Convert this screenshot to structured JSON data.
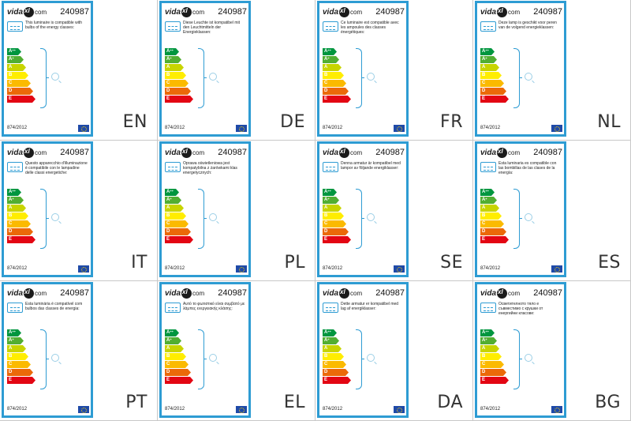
{
  "brand": {
    "logo_left": "vida",
    "logo_right": "com"
  },
  "sku": "240987",
  "regulation": "874/2012",
  "classes": [
    {
      "label": "A",
      "sup": "++",
      "color": "#00963f"
    },
    {
      "label": "A",
      "sup": "+",
      "color": "#52ae32"
    },
    {
      "label": "A",
      "sup": "",
      "color": "#c8d400"
    },
    {
      "label": "B",
      "sup": "",
      "color": "#ffed00"
    },
    {
      "label": "C",
      "sup": "",
      "color": "#fbba00"
    },
    {
      "label": "D",
      "sup": "",
      "color": "#eb6909"
    },
    {
      "label": "E",
      "sup": "",
      "color": "#e30613"
    }
  ],
  "colors": {
    "frame": "#2e9cd3",
    "eu_flag": "#1f4aa8"
  },
  "labels": [
    {
      "lang": "EN",
      "text": "This luminaire is compatible with bulbs of the energy classes:"
    },
    {
      "lang": "DE",
      "text": "Diese Leuchte ist kompatibel mit den Leuchtmitteln der Energieklassen:"
    },
    {
      "lang": "FR",
      "text": "Ce luminaire est compatible avec les ampoules des classes énergétiques:"
    },
    {
      "lang": "NL",
      "text": "Deze lamp is geschikt voor peren van de volgend energieklassen:"
    },
    {
      "lang": "IT",
      "text": "Questo apparecchio d'illuminazione è compatibile con le lampadine delle classi energetiche:"
    },
    {
      "lang": "PL",
      "text": "Oprawa oświetleniowa jest kompatybilna z żarówkami klas energetycznych:"
    },
    {
      "lang": "SE",
      "text": "Denna armatur är kompatibel med lampor av följande energiklasser:"
    },
    {
      "lang": "ES",
      "text": "Esta luminaria es compatible con las bombillas de las clases de la energía:"
    },
    {
      "lang": "PT",
      "text": "Esta luminária é compatível com bulbos das classes de energia:"
    },
    {
      "lang": "EL",
      "text": "Αυτό το φωτιστικό είναι συμβατό με λάμπες ενεργειακής κλάσης:"
    },
    {
      "lang": "DA",
      "text": "Dette armatur er kompatibel med lag af energiklasser:"
    },
    {
      "lang": "BG",
      "text": "Осветителното тяло е съвместимо с крушки от енергийни класове:"
    }
  ]
}
